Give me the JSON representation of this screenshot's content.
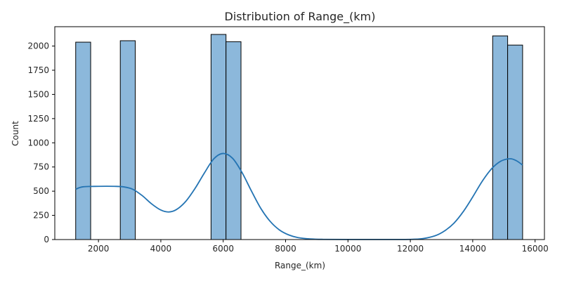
{
  "chart_data": {
    "type": "bar",
    "title": "Distribution of Range_(km)",
    "xlabel": "Range_(km)",
    "ylabel": "Count",
    "xlim": [
      600,
      16300
    ],
    "ylim": [
      0,
      2200
    ],
    "xticks": [
      2000,
      4000,
      6000,
      8000,
      10000,
      12000,
      14000,
      16000
    ],
    "yticks": [
      0,
      250,
      500,
      750,
      1000,
      1250,
      1500,
      1750,
      2000
    ],
    "bars": [
      {
        "x0": 1270,
        "x1": 1750,
        "count": 2040
      },
      {
        "x0": 2700,
        "x1": 3180,
        "count": 2055
      },
      {
        "x0": 5610,
        "x1": 6090,
        "count": 2120
      },
      {
        "x0": 6090,
        "x1": 6570,
        "count": 2045
      },
      {
        "x0": 14640,
        "x1": 15120,
        "count": 2105
      },
      {
        "x0": 15120,
        "x1": 15600,
        "count": 2010
      }
    ],
    "kde": {
      "x": [
        1270,
        1500,
        2000,
        2500,
        2800,
        3100,
        3400,
        3700,
        4000,
        4250,
        4500,
        4800,
        5100,
        5400,
        5700,
        6000,
        6300,
        6600,
        6900,
        7200,
        7500,
        7800,
        8100,
        8400,
        8800,
        9200,
        10000,
        11000,
        12000,
        12400,
        12800,
        13100,
        13400,
        13700,
        14000,
        14300,
        14600,
        14900,
        15200,
        15400,
        15600
      ],
      "y": [
        520,
        545,
        550,
        550,
        545,
        520,
        455,
        370,
        305,
        285,
        310,
        395,
        530,
        690,
        835,
        890,
        840,
        695,
        505,
        325,
        190,
        100,
        48,
        20,
        6,
        2,
        1,
        1,
        2,
        10,
        40,
        90,
        170,
        290,
        440,
        600,
        730,
        810,
        835,
        815,
        770
      ]
    },
    "bar_color": "#8cb8db",
    "bar_edge_color": "#000000",
    "line_color": "#2474b3",
    "grid": false,
    "legend": "none"
  }
}
